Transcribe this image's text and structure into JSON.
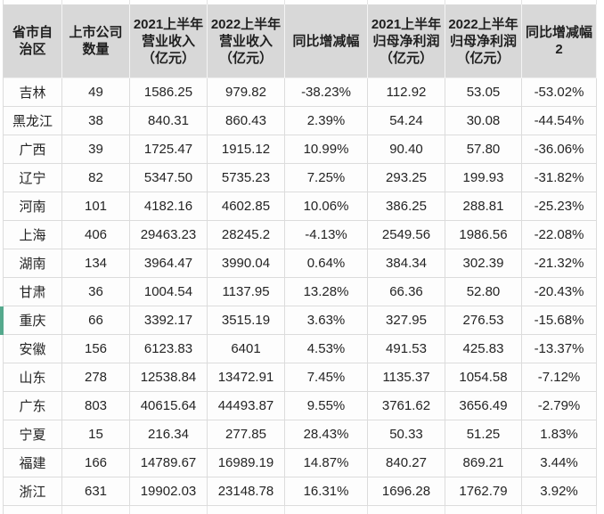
{
  "table": {
    "columns": [
      "省市自治区",
      "上市公司数量",
      "2021上半年营业收入（亿元）",
      "2022上半年营业收入（亿元）",
      "同比增减幅",
      "2021上半年归母净利润（亿元）",
      "2022上半年归母净利润（亿元）",
      "同比增减幅2"
    ],
    "rows": [
      [
        "吉林",
        "49",
        "1586.25",
        "979.82",
        "-38.23%",
        "112.92",
        "53.05",
        "-53.02%"
      ],
      [
        "黑龙江",
        "38",
        "840.31",
        "860.43",
        "2.39%",
        "54.24",
        "30.08",
        "-44.54%"
      ],
      [
        "广西",
        "39",
        "1725.47",
        "1915.12",
        "10.99%",
        "90.40",
        "57.80",
        "-36.06%"
      ],
      [
        "辽宁",
        "82",
        "5347.50",
        "5735.23",
        "7.25%",
        "293.25",
        "199.93",
        "-31.82%"
      ],
      [
        "河南",
        "101",
        "4182.16",
        "4602.85",
        "10.06%",
        "386.25",
        "288.81",
        "-25.23%"
      ],
      [
        "上海",
        "406",
        "29463.23",
        "28245.2",
        "-4.13%",
        "2549.56",
        "1986.56",
        "-22.08%"
      ],
      [
        "湖南",
        "134",
        "3964.47",
        "3990.04",
        "0.64%",
        "384.34",
        "302.39",
        "-21.32%"
      ],
      [
        "甘肃",
        "36",
        "1004.54",
        "1137.95",
        "13.28%",
        "66.36",
        "52.80",
        "-20.43%"
      ],
      [
        "重庆",
        "66",
        "3392.17",
        "3515.19",
        "3.63%",
        "327.95",
        "276.53",
        "-15.68%"
      ],
      [
        "安徽",
        "156",
        "6123.83",
        "6401",
        "4.53%",
        "491.53",
        "425.83",
        "-13.37%"
      ],
      [
        "山东",
        "278",
        "12538.84",
        "13472.91",
        "7.45%",
        "1135.37",
        "1054.58",
        "-7.12%"
      ],
      [
        "广东",
        "803",
        "40615.64",
        "44493.87",
        "9.55%",
        "3761.62",
        "3656.49",
        "-2.79%"
      ],
      [
        "宁夏",
        "15",
        "216.34",
        "277.85",
        "28.43%",
        "50.33",
        "51.25",
        "1.83%"
      ],
      [
        "福建",
        "166",
        "14789.67",
        "16989.19",
        "14.87%",
        "840.27",
        "869.21",
        "3.44%"
      ],
      [
        "浙江",
        "631",
        "19902.03",
        "23148.78",
        "16.31%",
        "1696.28",
        "1762.79",
        "3.92%"
      ]
    ],
    "selected_row": "重庆"
  },
  "colors": {
    "header_bg": "#d8d8d8",
    "header_text": "#1f1f1f",
    "grid_line": "#dcdcdc",
    "cell_bg": "#fdfdfd",
    "text": "#242424",
    "selection_accent": "#55a98d"
  }
}
